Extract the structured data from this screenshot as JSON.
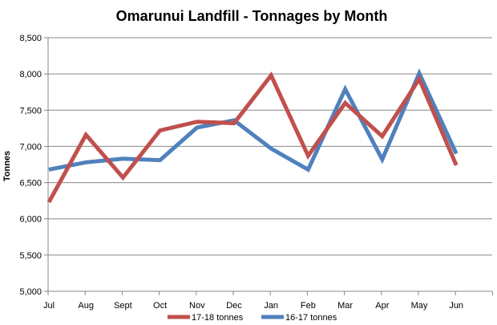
{
  "chart_data": {
    "type": "line",
    "title": "Omarunui Landfill - Tonnages by Month",
    "xlabel": "",
    "ylabel": "Tonnes",
    "categories": [
      "Jul",
      "Aug",
      "Sept",
      "Oct",
      "Nov",
      "Dec",
      "Jan",
      "Feb",
      "Mar",
      "Apr",
      "May",
      "Jun"
    ],
    "ylim": [
      5000,
      8500
    ],
    "yticks": [
      "5,000",
      "5,500",
      "6,000",
      "6,500",
      "7,000",
      "7,500",
      "8,000",
      "8,500"
    ],
    "grid": true,
    "legend_position": "bottom",
    "series": [
      {
        "name": "17-18 tonnes",
        "color": "#c0504d",
        "values": [
          6230,
          7160,
          6570,
          7220,
          7340,
          7320,
          7980,
          6870,
          7600,
          7140,
          7930,
          6740
        ]
      },
      {
        "name": "16-17 tonnes",
        "color": "#4f81bd",
        "values": [
          6680,
          6780,
          6830,
          6810,
          7260,
          7360,
          6970,
          6680,
          7790,
          6820,
          8010,
          6900
        ]
      }
    ]
  }
}
